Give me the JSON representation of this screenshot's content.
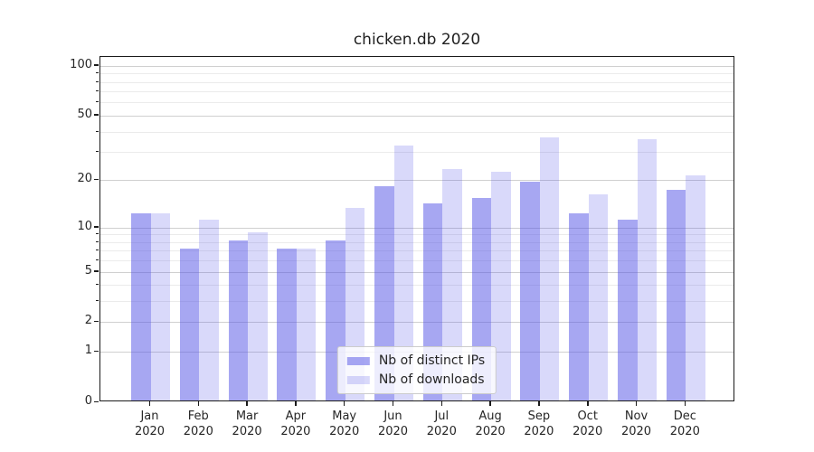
{
  "chart_data": {
    "type": "bar",
    "title": "chicken.db 2020",
    "categories": [
      "Jan 2020",
      "Feb 2020",
      "Mar 2020",
      "Apr 2020",
      "May 2020",
      "Jun 2020",
      "Jul 2020",
      "Aug 2020",
      "Sep 2020",
      "Oct 2020",
      "Nov 2020",
      "Dec 2020"
    ],
    "series": [
      {
        "name": "Nb of distinct IPs",
        "color": "#5050e6",
        "alpha": 0.5,
        "values": [
          12,
          7,
          8,
          7,
          8,
          18,
          14,
          15,
          19,
          12,
          11,
          17
        ]
      },
      {
        "name": "Nb of downloads",
        "color": "#5050e6",
        "alpha": 0.22,
        "values": [
          12,
          11,
          9,
          7,
          13,
          32,
          23,
          22,
          36,
          16,
          35,
          21
        ]
      }
    ],
    "xlabel": "",
    "ylabel": "",
    "y_scale": "log10(value+1)",
    "ylim": [
      0,
      113
    ],
    "y_major_ticks": [
      100,
      50,
      20,
      10,
      5,
      2,
      1,
      0
    ],
    "y_minor_ticks": [
      3,
      4,
      6,
      7,
      8,
      9,
      30,
      40,
      60,
      70,
      80,
      90
    ],
    "grid": "on",
    "legend_position": "lower center"
  },
  "colors": {
    "spine": "#1a1a1a",
    "grid_major": "#d0d0d0",
    "grid_minor": "#ebebeb",
    "text": "#262626",
    "background": "#ffffff"
  }
}
